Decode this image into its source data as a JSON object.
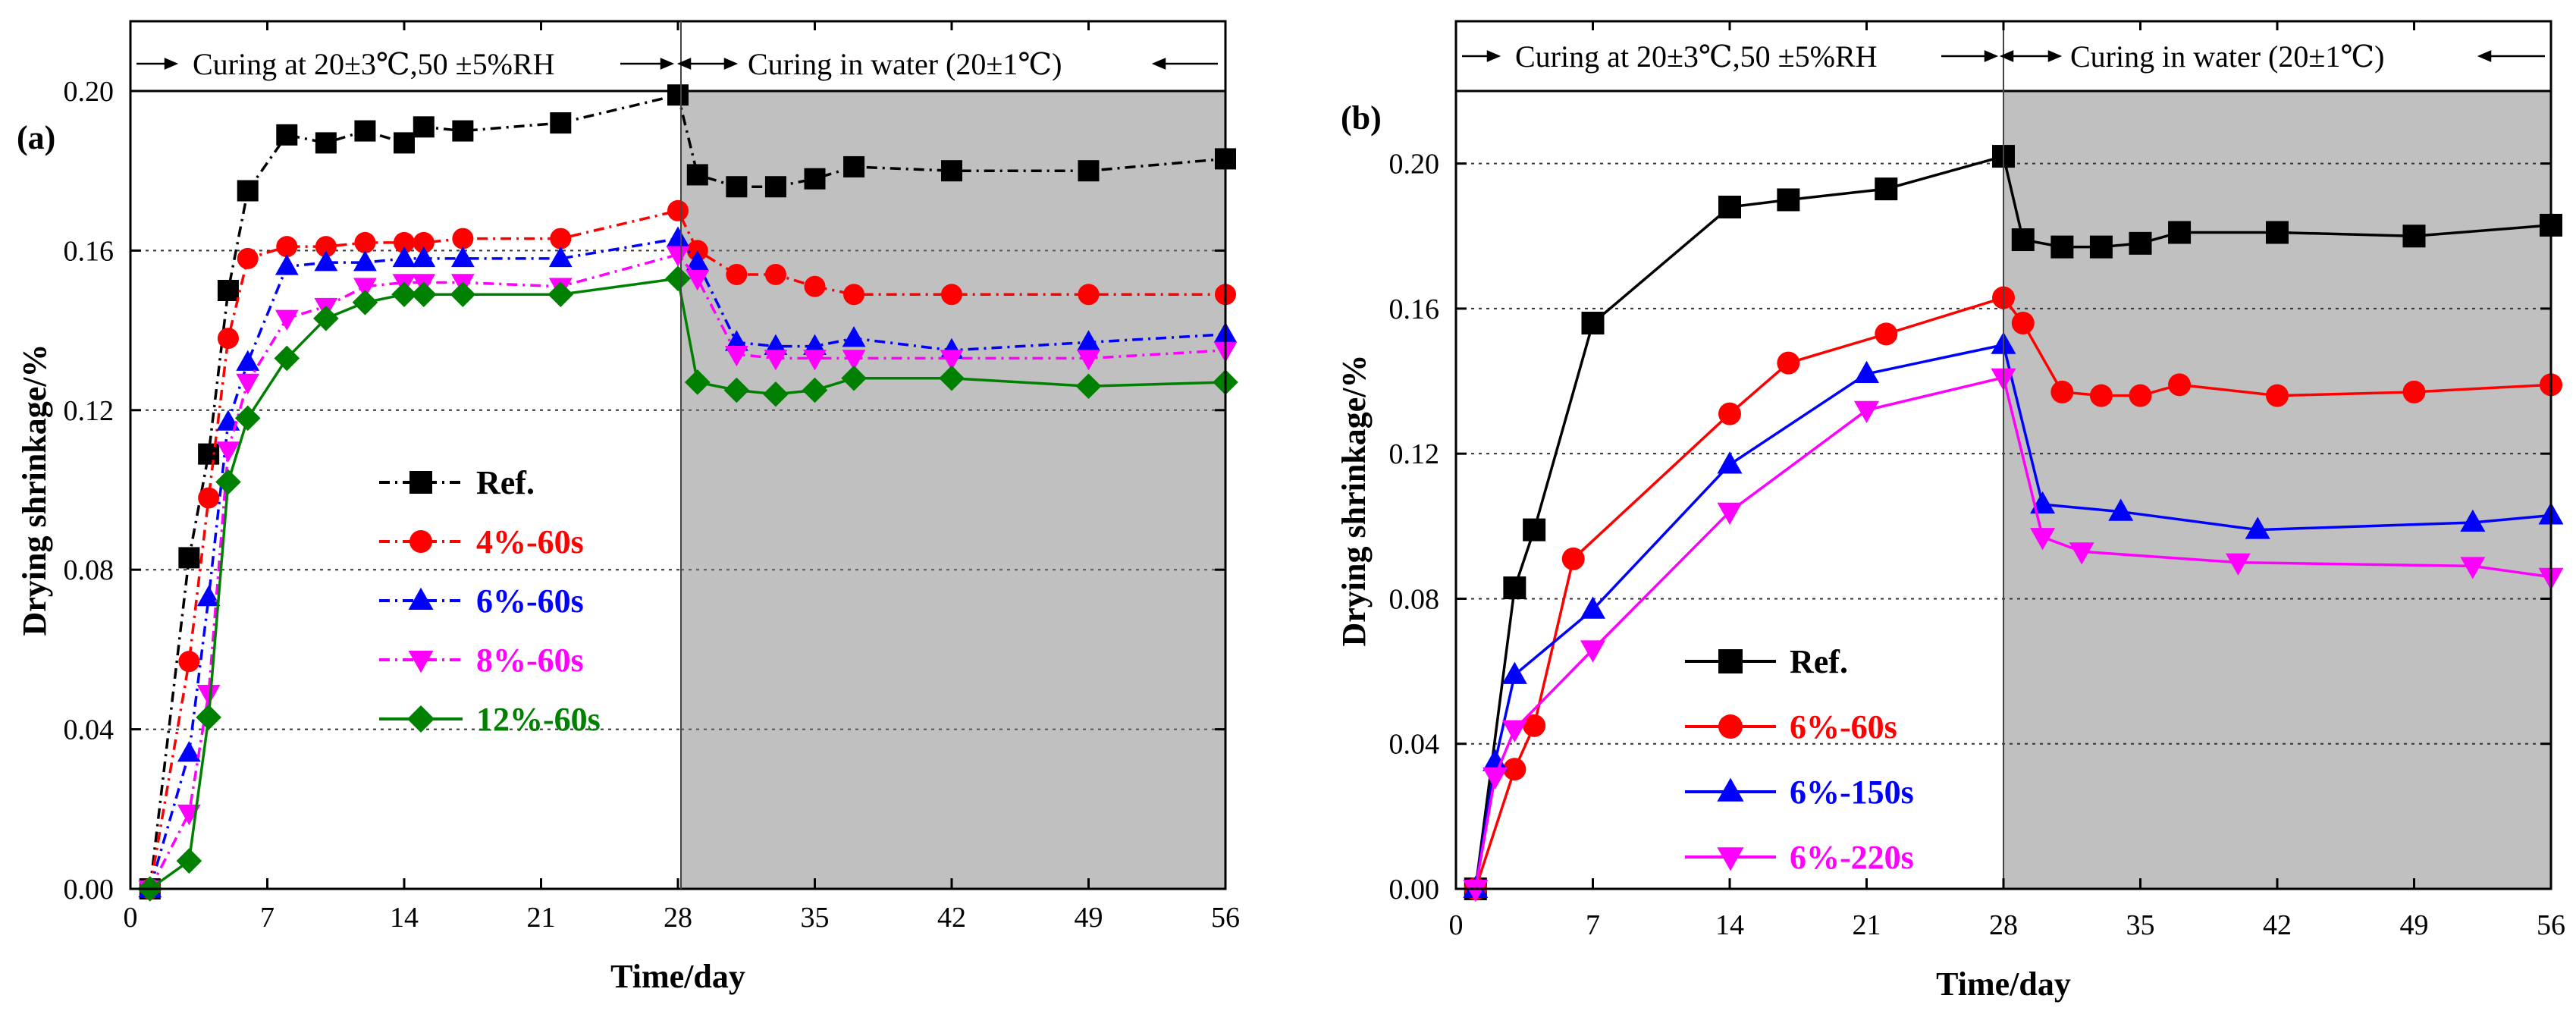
{
  "chart_data": [
    {
      "type": "line",
      "panel_label": "(a)",
      "xlabel": "Time/day",
      "ylabel": "Drying shrinkage/%",
      "xlim": [
        0,
        56
      ],
      "ylim": [
        0,
        0.2
      ],
      "xticks": [
        0,
        7,
        14,
        21,
        28,
        35,
        42,
        49,
        56
      ],
      "yticks": [
        0.0,
        0.04,
        0.08,
        0.12,
        0.16,
        0.2
      ],
      "ytick_labels": [
        "0.00",
        "0.04",
        "0.08",
        "0.12",
        "0.16",
        "0.20"
      ],
      "grid": "dotted horizontal",
      "shaded_region": [
        28,
        56
      ],
      "phase_labels": [
        "Curing at 20±3℃,50 ±5%RH",
        "Curing in water (20±1℃)"
      ],
      "legend_position": "center-left",
      "series": [
        {
          "name": "Ref.",
          "color": "#000000",
          "marker": "square",
          "line": "dash-dot",
          "x": [
            1,
            3,
            4,
            5,
            6,
            8,
            10,
            12,
            14,
            15,
            17,
            22,
            28,
            29,
            31,
            33,
            35,
            37,
            42,
            49,
            56
          ],
          "y": [
            0.0,
            0.083,
            0.109,
            0.15,
            0.175,
            0.189,
            0.187,
            0.19,
            0.187,
            0.191,
            0.19,
            0.192,
            0.199,
            0.179,
            0.176,
            0.176,
            0.178,
            0.181,
            0.18,
            0.18,
            0.183
          ]
        },
        {
          "name": "4%-60s",
          "color": "#ff0000",
          "marker": "circle",
          "line": "dash-dot",
          "x": [
            1,
            3,
            4,
            5,
            6,
            8,
            10,
            12,
            14,
            15,
            17,
            22,
            28,
            29,
            31,
            33,
            35,
            37,
            42,
            49,
            56
          ],
          "y": [
            0.0,
            0.057,
            0.098,
            0.138,
            0.158,
            0.161,
            0.161,
            0.162,
            0.162,
            0.162,
            0.163,
            0.163,
            0.17,
            0.16,
            0.154,
            0.154,
            0.151,
            0.149,
            0.149,
            0.149,
            0.149
          ]
        },
        {
          "name": "6%-60s",
          "color": "#0000ff",
          "marker": "triangle-up",
          "line": "dash-dot",
          "x": [
            1,
            3,
            4,
            5,
            6,
            8,
            10,
            12,
            14,
            15,
            17,
            22,
            28,
            29,
            31,
            33,
            35,
            37,
            42,
            49,
            56
          ],
          "y": [
            0.0,
            0.034,
            0.073,
            0.117,
            0.132,
            0.156,
            0.157,
            0.157,
            0.158,
            0.158,
            0.158,
            0.158,
            0.163,
            0.157,
            0.137,
            0.136,
            0.136,
            0.138,
            0.135,
            0.137,
            0.139
          ]
        },
        {
          "name": "8%-60s",
          "color": "#ff00ff",
          "marker": "triangle-down",
          "line": "dash-dot",
          "x": [
            1,
            3,
            4,
            5,
            6,
            8,
            10,
            12,
            14,
            15,
            17,
            22,
            28,
            29,
            31,
            33,
            35,
            37,
            42,
            49,
            56
          ],
          "y": [
            0.0,
            0.019,
            0.049,
            0.11,
            0.127,
            0.143,
            0.146,
            0.151,
            0.152,
            0.152,
            0.152,
            0.151,
            0.159,
            0.153,
            0.134,
            0.133,
            0.133,
            0.133,
            0.133,
            0.133,
            0.135
          ]
        },
        {
          "name": "12%-60s",
          "color": "#008000",
          "marker": "diamond",
          "line": "solid",
          "x": [
            1,
            3,
            4,
            5,
            6,
            8,
            10,
            12,
            14,
            15,
            17,
            22,
            28,
            29,
            31,
            33,
            35,
            37,
            42,
            49,
            56
          ],
          "y": [
            0.0,
            0.007,
            0.043,
            0.102,
            0.118,
            0.133,
            0.143,
            0.147,
            0.149,
            0.149,
            0.149,
            0.149,
            0.153,
            0.127,
            0.125,
            0.124,
            0.125,
            0.128,
            0.128,
            0.126,
            0.127
          ]
        }
      ]
    },
    {
      "type": "line",
      "panel_label": "(b)",
      "xlabel": "Time/day",
      "ylabel": "Drying shrinkage/%",
      "xlim": [
        0,
        56
      ],
      "ylim": [
        0,
        0.22
      ],
      "xticks": [
        0,
        7,
        14,
        21,
        28,
        35,
        42,
        49,
        56
      ],
      "yticks": [
        0.0,
        0.04,
        0.08,
        0.12,
        0.16,
        0.2
      ],
      "ytick_labels": [
        "0.00",
        "0.04",
        "0.08",
        "0.12",
        "0.16",
        "0.20"
      ],
      "grid": "dotted horizontal",
      "shaded_region": [
        28,
        56
      ],
      "phase_labels": [
        "Curing at 20±3℃,50 ±5%RH",
        "Curing in water (20±1℃)"
      ],
      "legend_position": "bottom-left",
      "series": [
        {
          "name": "Ref.",
          "color": "#000000",
          "marker": "square",
          "line": "solid",
          "x": [
            1,
            3,
            4,
            7,
            14,
            17,
            22,
            28,
            29,
            31,
            33,
            35,
            37,
            42,
            49,
            56
          ],
          "y": [
            0.0,
            0.083,
            0.099,
            0.156,
            0.188,
            0.19,
            0.193,
            0.202,
            0.179,
            0.177,
            0.177,
            0.178,
            0.181,
            0.181,
            0.18,
            0.183
          ]
        },
        {
          "name": "6%-60s",
          "color": "#ff0000",
          "marker": "circle",
          "line": "solid",
          "x": [
            1,
            3,
            4,
            6,
            14,
            17,
            22,
            28,
            29,
            31,
            33,
            35,
            37,
            42,
            49,
            56
          ],
          "y": [
            0.0,
            0.033,
            0.045,
            0.091,
            0.131,
            0.145,
            0.153,
            0.163,
            0.156,
            0.137,
            0.136,
            0.136,
            0.139,
            0.136,
            0.137,
            0.139
          ]
        },
        {
          "name": "6%-150s",
          "color": "#0000ff",
          "marker": "triangle-up",
          "line": "solid",
          "x": [
            1,
            2,
            3,
            7,
            14,
            21,
            28,
            30,
            34,
            41,
            52,
            56
          ],
          "y": [
            0.0,
            0.035,
            0.059,
            0.077,
            0.117,
            0.142,
            0.15,
            0.106,
            0.104,
            0.099,
            0.101,
            0.103
          ]
        },
        {
          "name": "6%-220s",
          "color": "#ff00ff",
          "marker": "triangle-down",
          "line": "solid",
          "x": [
            1,
            2,
            3,
            7,
            14,
            21,
            28,
            30,
            32,
            40,
            52,
            56
          ],
          "y": [
            0.0,
            0.031,
            0.044,
            0.066,
            0.104,
            0.132,
            0.141,
            0.097,
            0.093,
            0.09,
            0.089,
            0.086
          ]
        }
      ]
    }
  ]
}
